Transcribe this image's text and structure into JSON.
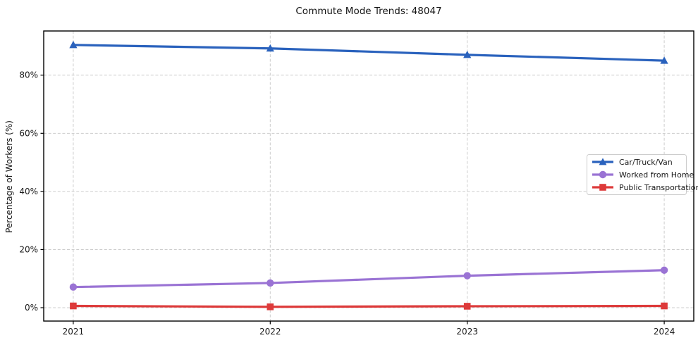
{
  "title": "Commute Mode Trends: 48047",
  "chart_data": {
    "type": "line",
    "title": "Commute Mode Trends: 48047",
    "x": [
      "2021",
      "2022",
      "2023",
      "2024"
    ],
    "series": [
      {
        "name": "Car/Truck/Van",
        "color": "#2a62bd",
        "marker": "triangle",
        "values": [
          90.4,
          89.2,
          87.0,
          85.0
        ]
      },
      {
        "name": "Worked from Home",
        "color": "#9a73d4",
        "marker": "circle",
        "values": [
          7.1,
          8.5,
          11.0,
          12.9
        ]
      },
      {
        "name": "Public Transportation",
        "color": "#dd3a3a",
        "marker": "square",
        "values": [
          0.6,
          0.3,
          0.5,
          0.6
        ]
      }
    ],
    "xlabel": "",
    "ylabel": "Percentage of Workers (%)",
    "ylim": [
      -4.6,
      95.2
    ],
    "yticks": [
      {
        "value": 0,
        "label": "0%"
      },
      {
        "value": 20,
        "label": "20%"
      },
      {
        "value": 40,
        "label": "40%"
      },
      {
        "value": 60,
        "label": "60%"
      },
      {
        "value": 80,
        "label": "80%"
      }
    ],
    "grid": true,
    "grid_color": "#cccccc",
    "legend_position": "center-right"
  }
}
